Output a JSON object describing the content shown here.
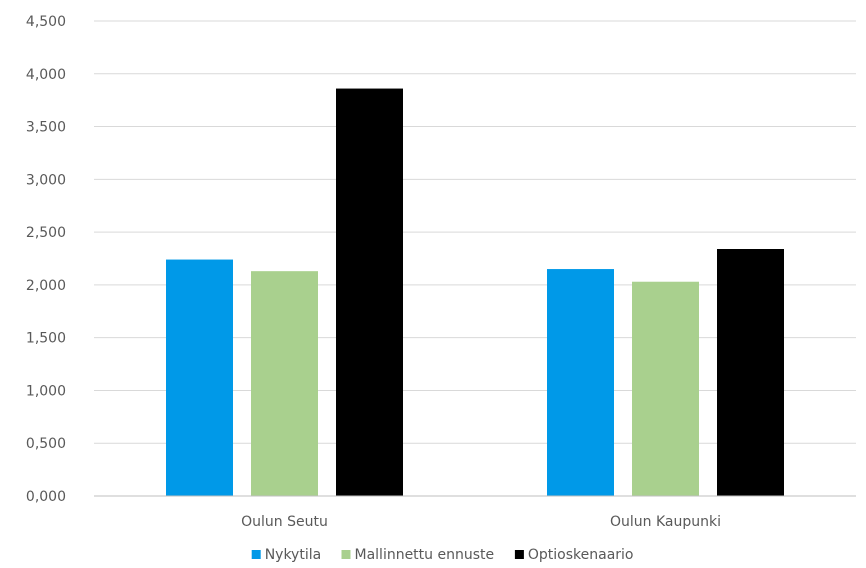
{
  "chart_data": {
    "type": "bar",
    "categories": [
      "Oulun Seutu",
      "Oulun Kaupunki"
    ],
    "series": [
      {
        "name": "Nykytila",
        "color": "#0099e8",
        "values": [
          2.24,
          2.15
        ]
      },
      {
        "name": "Mallinnettu ennuste",
        "color": "#a9d08e",
        "values": [
          2.13,
          2.03
        ]
      },
      {
        "name": "Optioskenaario",
        "color": "#000000",
        "values": [
          3.86,
          2.34
        ]
      }
    ],
    "yticks": [
      "0,000",
      "0,500",
      "1,000",
      "1,500",
      "2,000",
      "2,500",
      "3,000",
      "3,500",
      "4,000",
      "4,500"
    ],
    "ylim": [
      0,
      4.5
    ],
    "grid": true,
    "legend_position": "bottom"
  }
}
